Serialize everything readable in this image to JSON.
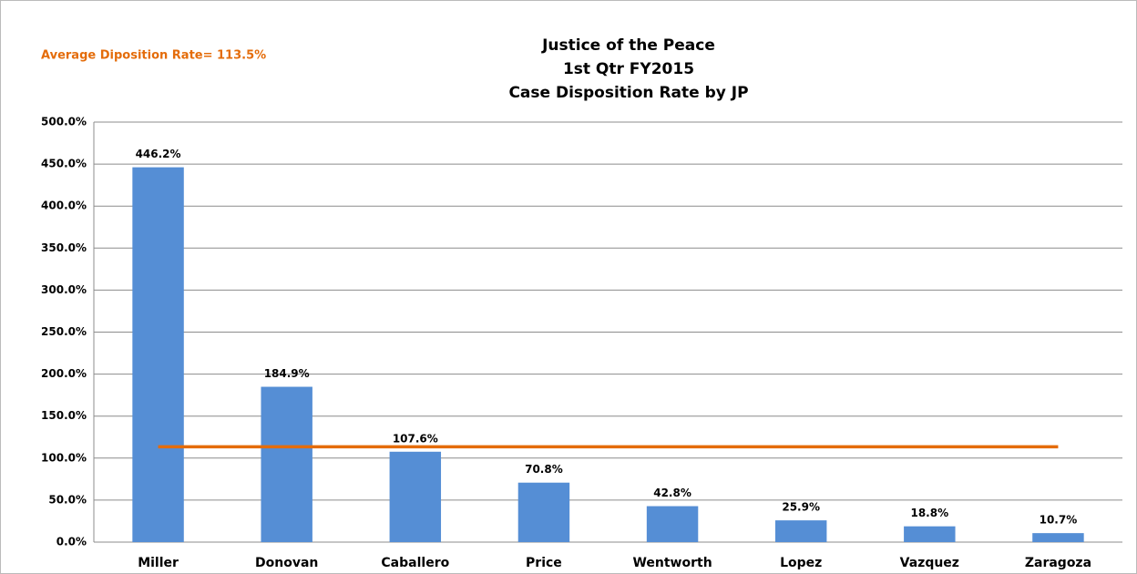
{
  "chart_data": {
    "type": "bar",
    "title": [
      "Justice of the Peace",
      "1st Qtr FY2015",
      "Case Disposition Rate by JP"
    ],
    "categories": [
      "Miller",
      "Donovan",
      "Caballero",
      "Price",
      "Wentworth",
      "Lopez",
      "Vazquez",
      "Zaragoza"
    ],
    "values": [
      446.2,
      184.9,
      107.6,
      70.8,
      42.8,
      25.9,
      18.8,
      10.7
    ],
    "value_labels": [
      "446.2%",
      "184.9%",
      "107.6%",
      "70.8%",
      "42.8%",
      "25.9%",
      "18.8%",
      "10.7%"
    ],
    "color": "#558ed5",
    "reference_line": {
      "value": 113.5,
      "label": "Average Diposition Rate= 113.5%",
      "color": "#e46c0a"
    },
    "ylim": [
      0,
      500
    ],
    "yticks": [
      {
        "value": 0,
        "label": "0.0%"
      },
      {
        "value": 50,
        "label": "50.0%"
      },
      {
        "value": 100,
        "label": "100.0%"
      },
      {
        "value": 150,
        "label": "150.0%"
      },
      {
        "value": 200,
        "label": "200.0%"
      },
      {
        "value": 250,
        "label": "250.0%"
      },
      {
        "value": 300,
        "label": "300.0%"
      },
      {
        "value": 350,
        "label": "350.0%"
      },
      {
        "value": 400,
        "label": "400.0%"
      },
      {
        "value": 450,
        "label": "450.0%"
      },
      {
        "value": 500,
        "label": "500.0%"
      }
    ],
    "grid": true
  }
}
